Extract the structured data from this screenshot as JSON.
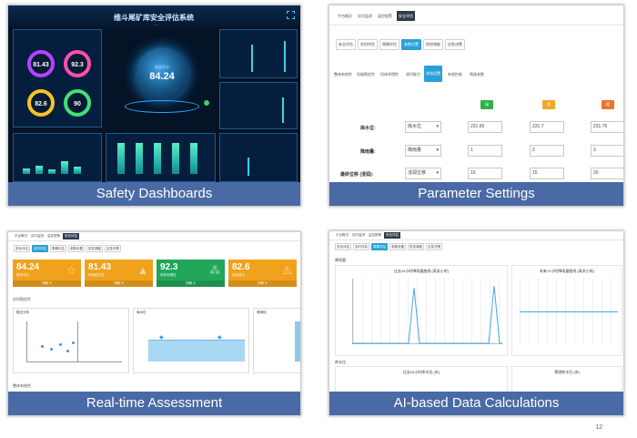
{
  "captions": {
    "safety": "Safety Dashboards",
    "parameters": "Parameter Settings",
    "realtime": "Real-time Assessment",
    "ai": "AI-based Data Calculations"
  },
  "page_number": "12",
  "dashboard": {
    "title": "维斗尾矿库安全评估系统",
    "center_score": "84.24",
    "center_label": "安全评分",
    "gauges": [
      "81.43",
      "92.3",
      "82.6",
      "90"
    ]
  },
  "params": {
    "top_tabs": [
      "平台概况",
      "实时监测",
      "监控报警",
      "安全评估"
    ],
    "sub_tabs": [
      "安全评估",
      "实时评估",
      "周期评估",
      "参数设置",
      "防控调度",
      "应急决策"
    ],
    "inner_tabs": [
      "整体有效性",
      "坝坡稳定性",
      "坝体渗透性",
      "调洪能力",
      "渗流设置",
      "有效性能",
      "两维参数"
    ],
    "level_badges": [
      "绿",
      "黄",
      "橙"
    ],
    "badge_colors": [
      "#2db14b",
      "#f5a623",
      "#e8772e"
    ],
    "rows": [
      {
        "label": "库水位:",
        "select": "库水位",
        "values": [
          "231.65",
          "231.7",
          "231.75"
        ]
      },
      {
        "label": "降雨量:",
        "select": "降雨量",
        "values": [
          "1",
          "2",
          "3"
        ]
      },
      {
        "label": "最终位移 (浸润):",
        "select": "浸润位移",
        "values": [
          "10",
          "15",
          "20"
        ]
      }
    ]
  },
  "realtime": {
    "top_tabs": [
      "平台概况",
      "实时监测",
      "监控报警",
      "安全评估"
    ],
    "sub_tabs": [
      "安全评估",
      "实时评估",
      "周期评估",
      "参数设置",
      "防控调度",
      "应急决策"
    ],
    "kpis": [
      {
        "value": "84.24",
        "sub": "整体评分",
        "footer": "详情 ☑",
        "color": "#f0a21d"
      },
      {
        "value": "81.43",
        "sub": "坝坡稳定性",
        "footer": "详情 ☑",
        "color": "#f0a21d"
      },
      {
        "value": "92.3",
        "sub": "坝体渗透性",
        "footer": "详情 ☑",
        "color": "#22a65a"
      },
      {
        "value": "82.6",
        "sub": "调洪能力",
        "footer": "详情 ☑",
        "color": "#f0a21d"
      }
    ],
    "section_title": "实时稳定性",
    "section2_title": "整体有效性",
    "chart_labels": [
      "稳定分析",
      "库水位",
      "浸润线"
    ]
  },
  "ai": {
    "top_tabs": [
      "平台概况",
      "实时监测",
      "监控报警",
      "安全评估"
    ],
    "sub_tabs": [
      "安全评估",
      "实时评估",
      "周期评估",
      "参数设置",
      "防控调度",
      "应急决策"
    ],
    "section1": "降雨量",
    "section2": "库水位",
    "chart_titles": [
      "过去24小时降雨量曲线 (高关小时)",
      "未来72小时降雨量曲线 (高关小时)",
      "过去24小时库水位 (米)",
      "预测库水位 (米)"
    ]
  }
}
